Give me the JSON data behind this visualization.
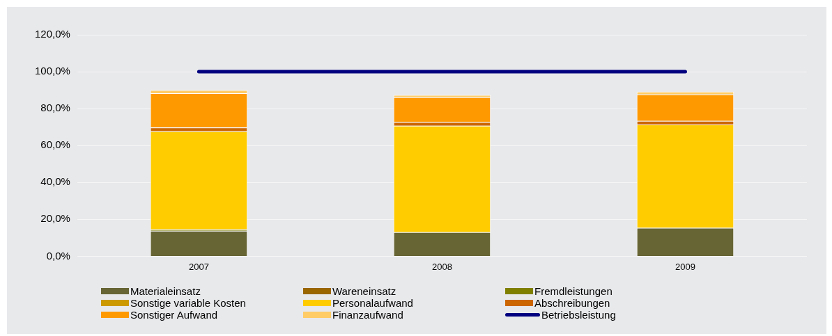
{
  "chart_data": {
    "type": "bar",
    "stacked": true,
    "categories": [
      "2007",
      "2008",
      "2009"
    ],
    "ylim": [
      0,
      120
    ],
    "yticks": [
      {
        "value": 0,
        "label": "0,0%"
      },
      {
        "value": 20,
        "label": "20,0%"
      },
      {
        "value": 40,
        "label": "40,0%"
      },
      {
        "value": 60,
        "label": "60,0%"
      },
      {
        "value": 80,
        "label": "80,0%"
      },
      {
        "value": 100,
        "label": "100,0%"
      },
      {
        "value": 120,
        "label": "120,0%"
      }
    ],
    "grid": "y",
    "legend": "bottom",
    "marker": "none",
    "series": [
      {
        "name": "Materialeinsatz",
        "color": "#676534",
        "values": [
          13.8,
          13.1,
          15.4
        ]
      },
      {
        "name": "Wareneinsatz",
        "color": "#996600",
        "values": [
          0,
          0,
          0
        ]
      },
      {
        "name": "Fremdleistungen",
        "color": "#808000",
        "values": [
          0.8,
          0,
          0
        ]
      },
      {
        "name": "Sonstige variable Kosten",
        "color": "#cc9900",
        "values": [
          0,
          0,
          0
        ]
      },
      {
        "name": "Personalaufwand",
        "color": "#ffcc00",
        "values": [
          53.1,
          57.6,
          56.0
        ]
      },
      {
        "name": "Abschreibungen",
        "color": "#cc6600",
        "values": [
          2.1,
          2.0,
          2.0
        ]
      },
      {
        "name": "Sonstiger Aufwand",
        "color": "#ff9900",
        "values": [
          18.5,
          13.5,
          14.3
        ]
      },
      {
        "name": "Finanzaufwand",
        "color": "#ffcc66",
        "values": [
          1.7,
          1.2,
          1.5
        ]
      },
      {
        "name": "Betriebsleistung",
        "type": "line",
        "color": "#000080",
        "line_style": "solid",
        "values": [
          100,
          100,
          100
        ]
      }
    ]
  }
}
